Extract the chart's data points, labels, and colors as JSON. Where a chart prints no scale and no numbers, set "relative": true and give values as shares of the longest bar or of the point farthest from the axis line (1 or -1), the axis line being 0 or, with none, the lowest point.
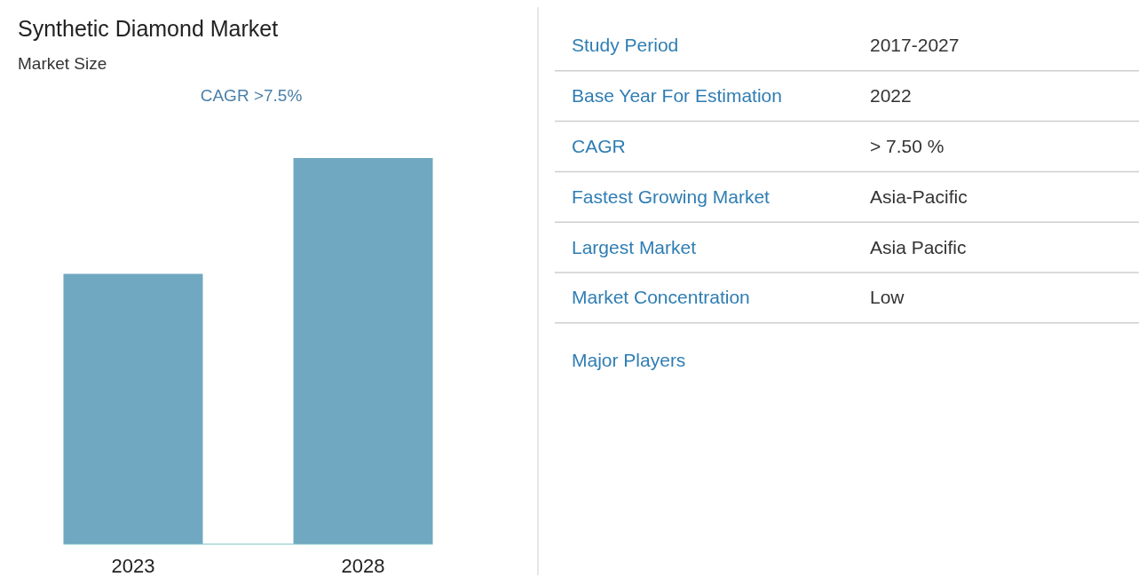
{
  "chart_data": [
    {
      "type": "bar",
      "title": "Synthetic Diamond Market",
      "subtitle": "Market Size",
      "annotations": [
        "CAGR >7.5%"
      ],
      "categories": [
        "2023",
        "2028"
      ],
      "values": [
        0.7,
        1
      ],
      "relative": true,
      "color": "#6fa8c0"
    },
    {
      "type": "other",
      "annotations": [
        "Study Period",
        "2017-2027",
        "Base Year For Estimation",
        "2022",
        "CAGR",
        "> 7.50 %",
        "Fastest Growing Market",
        "Asia-Pacific",
        "Largest Market",
        "Asia Pacific",
        "Market Concentration",
        "Low",
        "Major Players"
      ]
    }
  ]
}
